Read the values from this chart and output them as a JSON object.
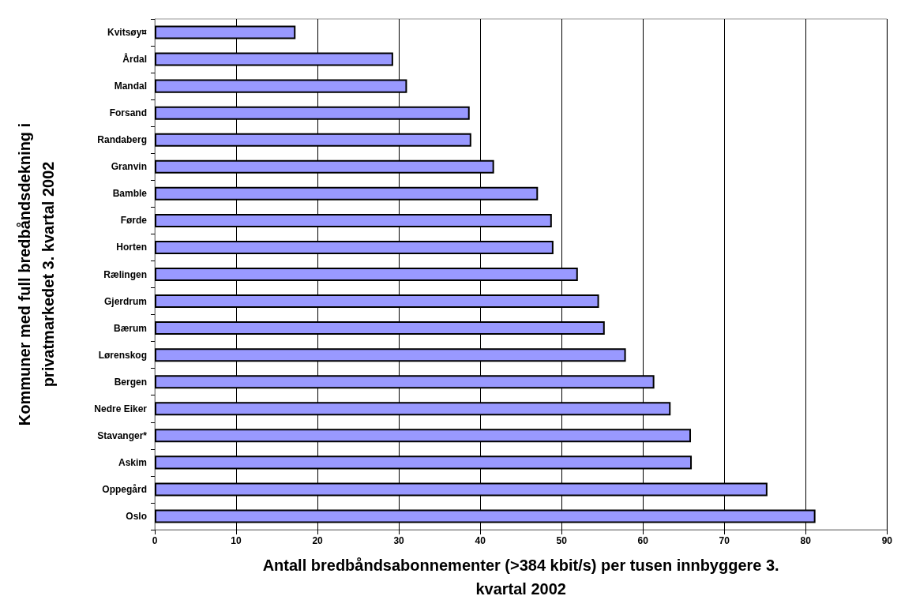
{
  "chart_data": {
    "type": "bar",
    "orientation": "horizontal",
    "xlabel": "Antall bredbåndsabonnementer (>384 kbit/s) per tusen innbyggere 3.\nkvartal 2002",
    "ylabel": "Kommuner med full bredbåndsdekning i\nprivatmarkedet 3. kvartal 2002",
    "categories": [
      "Kvitsøy¤",
      "Årdal",
      "Mandal",
      "Forsand",
      "Randaberg",
      "Granvin",
      "Bamble",
      "Førde",
      "Horten",
      "Rælingen",
      "Gjerdrum",
      "Bærum",
      "Lørenskog",
      "Bergen",
      "Nedre Eiker",
      "Stavanger*",
      "Askim",
      "Oppegård",
      "Oslo"
    ],
    "values": [
      17.3,
      29.3,
      31.0,
      38.7,
      38.9,
      41.7,
      47.1,
      48.8,
      49.0,
      52.0,
      54.6,
      55.3,
      57.9,
      61.4,
      63.4,
      65.9,
      66.0,
      75.3,
      81.2
    ],
    "color": "#9999ff",
    "xlim": [
      0,
      90
    ],
    "xticks": [
      0,
      10,
      20,
      30,
      40,
      50,
      60,
      70,
      80,
      90
    ],
    "grid": "x"
  }
}
